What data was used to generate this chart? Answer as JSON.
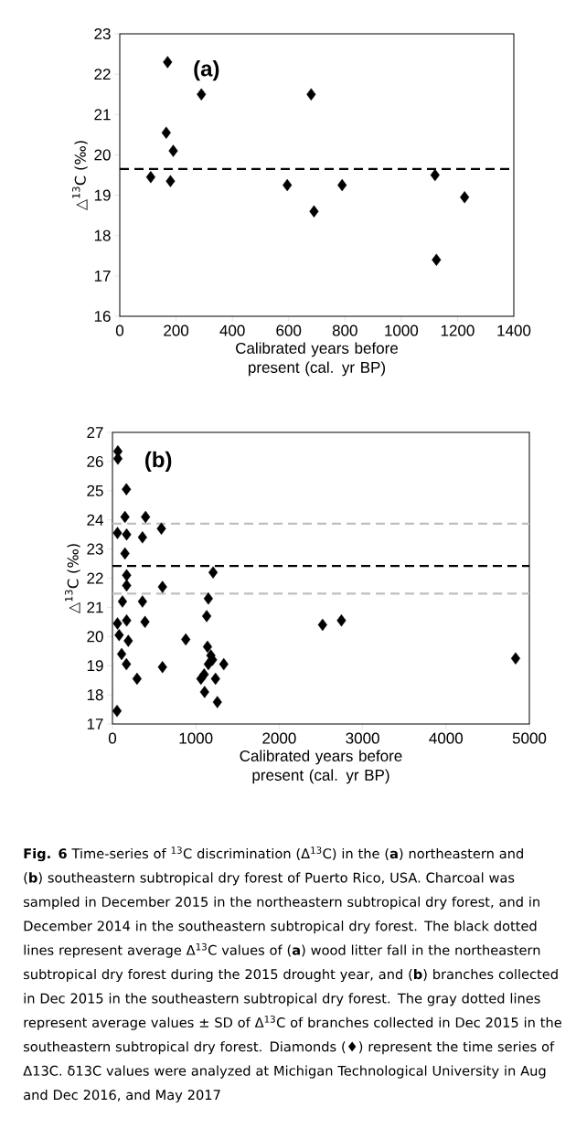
{
  "chart_data": [
    {
      "type": "scatter",
      "xlabel": "Calibrated years before present (cal. yr BP)",
      "ylabel": "△$^{13}$C (‰)",
      "annotations": [
        "(a)"
      ],
      "marker": "diamond",
      "xlim": [
        0,
        1400
      ],
      "xticks": [
        0,
        200,
        400,
        600,
        800,
        1000,
        1200,
        1400
      ],
      "ylim": [
        16,
        23
      ],
      "yticks": [
        16,
        17,
        18,
        19,
        20,
        21,
        22,
        23
      ],
      "series": [
        {
          "color": "#000000",
          "x": [
            110,
            170,
            165,
            190,
            180,
            290,
            595,
            680,
            690,
            790,
            1120,
            1125,
            1225
          ],
          "values": [
            19.45,
            22.3,
            20.55,
            20.1,
            19.35,
            21.5,
            19.25,
            21.5,
            18.6,
            19.25,
            19.5,
            17.4,
            18.95
          ]
        }
      ],
      "ref_lines": [
        {
          "axis": "y",
          "value": 19.65,
          "color": "#000000",
          "line_style": "dashed"
        }
      ]
    },
    {
      "type": "scatter",
      "xlabel": "Calibrated years before present (cal. yr BP)",
      "ylabel": "△$^{13}$C (‰)",
      "marker": "diamond",
      "annotations": [
        "(b)",
        "**Fig. 6** Time-series of $^{13}$C discrimination (Δ$^{13}$C) in the (**a**) northeastern and (**b**) southeastern subtropical dry forest of Puerto Rico, USA. Charcoal was sampled in December 2015 in the northeastern subtropical dry forest, and in December 2014 in the southeastern subtropical dry forest. The black dotted lines represent average Δ$^{13}$C values of (**a**) wood litter fall in the northeastern subtropical dry forest during the 2015 drought year, and (**b**) branches collected in Dec 2015 in the southeastern subtropical dry forest. The gray dotted lines represent average values ± SD of Δ$^{13}$C of branches collected in Dec 2015 in the southeastern subtropical dry forest. Diamonds (♦) represent the time series of Δ13C. δ13C values were analyzed at Michigan Technological University in Aug and Dec 2016, and May 2017"
      ],
      "xlim": [
        0,
        5000
      ],
      "xticks": [
        0,
        1000,
        2000,
        3000,
        4000,
        5000
      ],
      "ylim": [
        17,
        27
      ],
      "yticks": [
        17,
        18,
        19,
        20,
        21,
        22,
        23,
        24,
        25,
        26,
        27
      ],
      "series": [
        {
          "color": "#000000",
          "x": [
            65,
            65,
            167,
            150,
            397,
            587,
            60,
            170,
            360,
            150,
            170,
            170,
            600,
            1207,
            1150,
            120,
            360,
            1130,
            390,
            170,
            60,
            80,
            190,
            879,
            2520,
            2746,
            1140,
            110,
            1180,
            1335,
            167,
            600,
            1150,
            295,
            55,
            1061,
            1105,
            1236,
            1258,
            1100,
            4835,
            1200
          ],
          "values": [
            26.35,
            26.1,
            25.05,
            24.1,
            24.1,
            23.7,
            23.55,
            23.5,
            23.4,
            22.85,
            22.1,
            21.75,
            21.7,
            22.2,
            21.3,
            21.2,
            21.2,
            20.7,
            20.5,
            20.55,
            20.45,
            20.05,
            19.85,
            19.9,
            20.4,
            20.55,
            19.65,
            19.4,
            19.35,
            19.05,
            19.05,
            18.95,
            19.05,
            18.55,
            17.45,
            18.55,
            18.1,
            18.55,
            17.75,
            18.7,
            19.25,
            19.2
          ]
        }
      ],
      "ref_lines": [
        {
          "axis": "y",
          "value": 23.87,
          "color": "#bfbfbf",
          "line_style": "dashed"
        },
        {
          "axis": "y",
          "value": 22.42,
          "color": "#000000",
          "line_style": "dashed"
        },
        {
          "axis": "y",
          "value": 21.47,
          "color": "#bfbfbf",
          "line_style": "dashed"
        }
      ]
    }
  ]
}
